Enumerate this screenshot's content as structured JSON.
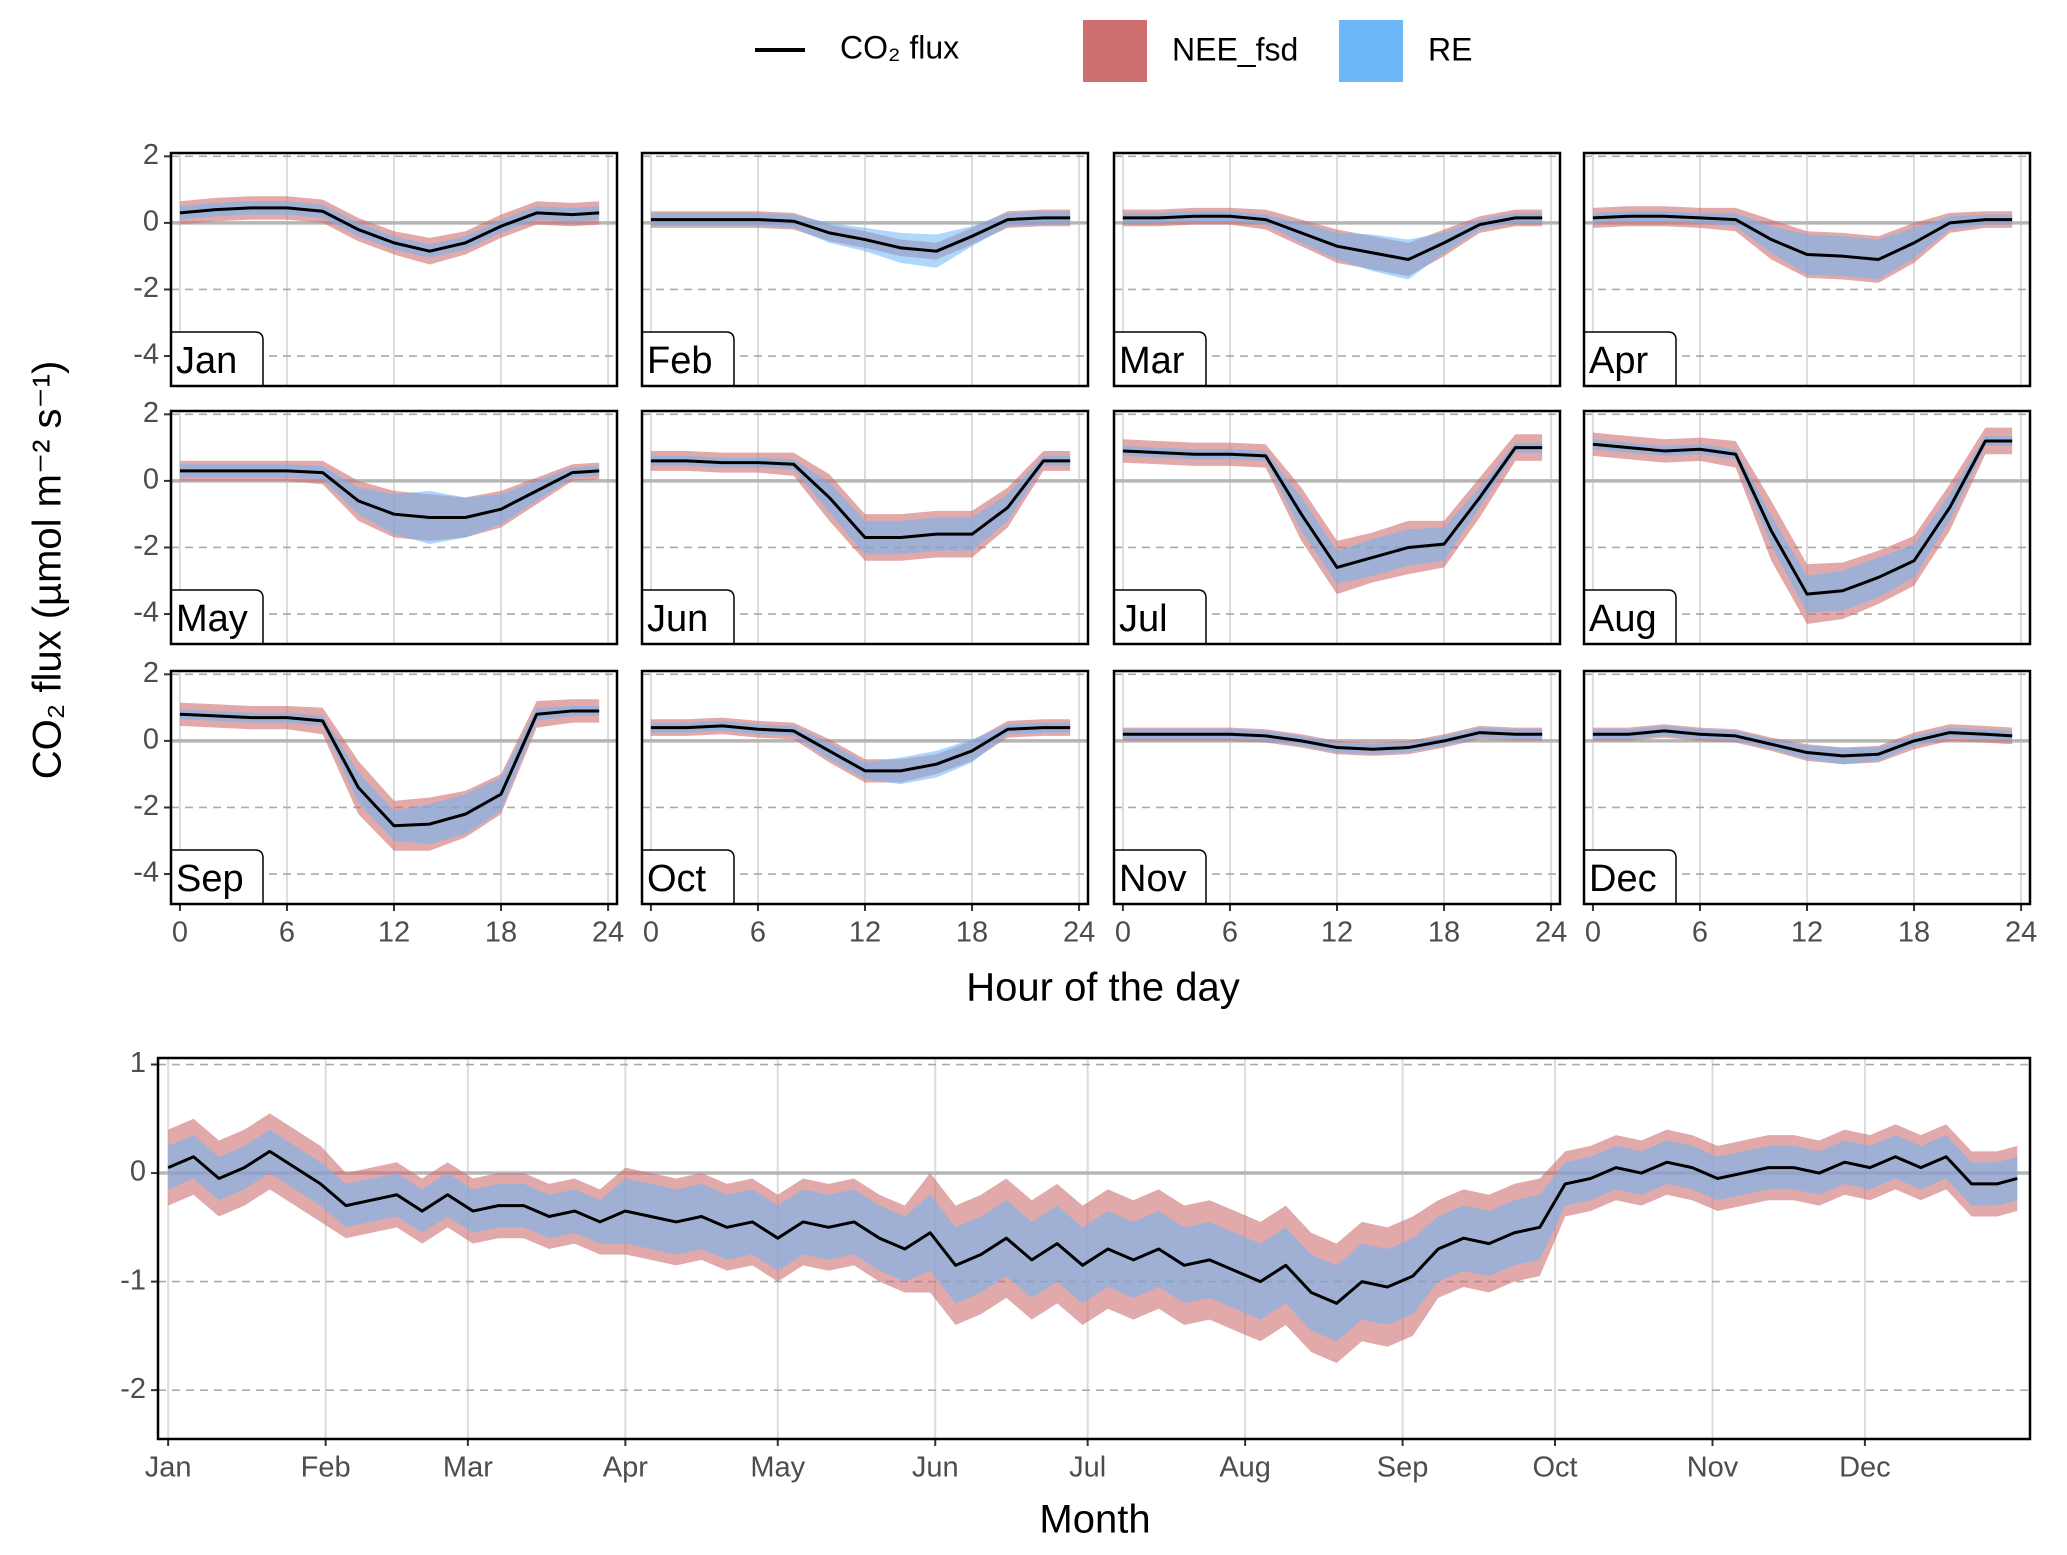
{
  "chart_data": [
    {
      "type": "line",
      "xlabel": "Hour of the day",
      "ylabel": "CO₂ flux (µmol m⁻² s⁻¹)",
      "facets": [
        "Jan",
        "Feb",
        "Mar",
        "Apr",
        "May",
        "Jun",
        "Jul",
        "Aug",
        "Sep",
        "Oct",
        "Nov",
        "Dec"
      ],
      "x": [
        0,
        2,
        4,
        6,
        8,
        10,
        12,
        14,
        16,
        18,
        20,
        22,
        23.5
      ],
      "xlim": [
        -0.5,
        24.5
      ],
      "xticks": [
        0,
        6,
        12,
        18,
        24
      ],
      "ylim": [
        -4.9,
        2.1
      ],
      "yticks": [
        2,
        0,
        -2,
        -4
      ],
      "grid": true,
      "series": [
        {
          "name": "CO₂ flux",
          "color": "#000000",
          "values": [
            [
              0.3,
              0.4,
              0.45,
              0.45,
              0.35,
              -0.2,
              -0.6,
              -0.85,
              -0.6,
              -0.1,
              0.3,
              0.25,
              0.3
            ],
            [
              0.1,
              0.1,
              0.1,
              0.1,
              0.05,
              -0.3,
              -0.5,
              -0.75,
              -0.85,
              -0.4,
              0.1,
              0.15,
              0.15
            ],
            [
              0.15,
              0.15,
              0.2,
              0.2,
              0.1,
              -0.3,
              -0.7,
              -0.9,
              -1.1,
              -0.6,
              -0.05,
              0.15,
              0.15
            ],
            [
              0.15,
              0.2,
              0.2,
              0.15,
              0.1,
              -0.5,
              -0.95,
              -1,
              -1.1,
              -0.6,
              0,
              0.1,
              0.1
            ],
            [
              0.3,
              0.3,
              0.3,
              0.3,
              0.25,
              -0.6,
              -1,
              -1.1,
              -1.1,
              -0.85,
              -0.3,
              0.25,
              0.3
            ],
            [
              0.6,
              0.6,
              0.55,
              0.55,
              0.5,
              -0.5,
              -1.7,
              -1.7,
              -1.6,
              -1.6,
              -0.8,
              0.6,
              0.6
            ],
            [
              0.9,
              0.85,
              0.8,
              0.8,
              0.75,
              -1,
              -2.6,
              -2.3,
              -2,
              -1.9,
              -0.5,
              1,
              1
            ],
            [
              1.1,
              1,
              0.9,
              0.95,
              0.8,
              -1.5,
              -3.4,
              -3.3,
              -2.9,
              -2.4,
              -0.8,
              1.2,
              1.2
            ],
            [
              0.8,
              0.75,
              0.7,
              0.7,
              0.6,
              -1.4,
              -2.55,
              -2.5,
              -2.2,
              -1.6,
              0.8,
              0.9,
              0.9
            ],
            [
              0.4,
              0.4,
              0.45,
              0.35,
              0.3,
              -0.3,
              -0.9,
              -0.9,
              -0.7,
              -0.3,
              0.35,
              0.4,
              0.4
            ],
            [
              0.2,
              0.2,
              0.2,
              0.2,
              0.15,
              0,
              -0.2,
              -0.25,
              -0.2,
              0,
              0.25,
              0.2,
              0.2
            ],
            [
              0.2,
              0.2,
              0.3,
              0.2,
              0.15,
              -0.1,
              -0.35,
              -0.45,
              -0.4,
              0,
              0.25,
              0.2,
              0.15
            ]
          ]
        },
        {
          "name": "NEE_fsd",
          "color": "#cd6f6f",
          "values": [
            [
              0.35,
              0.35,
              0.35,
              0.35,
              0.35,
              0.35,
              0.35,
              0.4,
              0.35,
              0.35,
              0.35,
              0.35,
              0.35
            ],
            [
              0.25,
              0.25,
              0.25,
              0.25,
              0.25,
              0.25,
              0.25,
              0.25,
              0.25,
              0.25,
              0.25,
              0.25,
              0.25
            ],
            [
              0.25,
              0.25,
              0.25,
              0.25,
              0.3,
              0.4,
              0.5,
              0.5,
              0.5,
              0.4,
              0.25,
              0.25,
              0.25
            ],
            [
              0.3,
              0.3,
              0.3,
              0.3,
              0.35,
              0.6,
              0.7,
              0.7,
              0.7,
              0.6,
              0.3,
              0.25,
              0.25
            ],
            [
              0.3,
              0.3,
              0.3,
              0.3,
              0.35,
              0.6,
              0.7,
              0.7,
              0.6,
              0.55,
              0.4,
              0.25,
              0.25
            ],
            [
              0.3,
              0.3,
              0.3,
              0.3,
              0.35,
              0.7,
              0.7,
              0.7,
              0.7,
              0.7,
              0.6,
              0.3,
              0.3
            ],
            [
              0.35,
              0.35,
              0.35,
              0.35,
              0.35,
              0.8,
              0.8,
              0.75,
              0.8,
              0.7,
              0.6,
              0.4,
              0.4
            ],
            [
              0.35,
              0.35,
              0.35,
              0.35,
              0.4,
              0.9,
              0.9,
              0.85,
              0.8,
              0.75,
              0.7,
              0.4,
              0.4
            ],
            [
              0.35,
              0.35,
              0.35,
              0.35,
              0.4,
              0.8,
              0.75,
              0.8,
              0.7,
              0.6,
              0.4,
              0.35,
              0.35
            ],
            [
              0.25,
              0.25,
              0.25,
              0.25,
              0.25,
              0.35,
              0.35,
              0.35,
              0.3,
              0.3,
              0.25,
              0.25,
              0.25
            ],
            [
              0.2,
              0.2,
              0.2,
              0.2,
              0.2,
              0.2,
              0.2,
              0.2,
              0.2,
              0.2,
              0.2,
              0.2,
              0.2
            ],
            [
              0.2,
              0.2,
              0.2,
              0.2,
              0.2,
              0.2,
              0.25,
              0.25,
              0.25,
              0.25,
              0.25,
              0.25,
              0.25
            ]
          ]
        },
        {
          "name": "RE",
          "color": "#6cb7f7",
          "values": [
            [
              0.2,
              0.2,
              0.2,
              0.2,
              0.2,
              0.2,
              0.2,
              0.2,
              0.2,
              0.2,
              0.2,
              0.2,
              0.2
            ],
            [
              0.2,
              0.2,
              0.2,
              0.2,
              0.2,
              0.3,
              0.35,
              0.45,
              0.5,
              0.3,
              0.2,
              0.2,
              0.2
            ],
            [
              0.15,
              0.15,
              0.15,
              0.15,
              0.15,
              0.3,
              0.4,
              0.55,
              0.6,
              0.3,
              0.15,
              0.15,
              0.15
            ],
            [
              0.15,
              0.15,
              0.15,
              0.15,
              0.2,
              0.4,
              0.6,
              0.6,
              0.6,
              0.45,
              0.2,
              0.15,
              0.15
            ],
            [
              0.2,
              0.2,
              0.2,
              0.2,
              0.2,
              0.4,
              0.6,
              0.8,
              0.6,
              0.45,
              0.3,
              0.15,
              0.15
            ],
            [
              0.15,
              0.15,
              0.15,
              0.15,
              0.15,
              0.45,
              0.5,
              0.5,
              0.5,
              0.5,
              0.4,
              0.15,
              0.15
            ],
            [
              0.15,
              0.15,
              0.15,
              0.15,
              0.15,
              0.5,
              0.5,
              0.55,
              0.55,
              0.5,
              0.3,
              0.15,
              0.15
            ],
            [
              0.15,
              0.15,
              0.15,
              0.15,
              0.15,
              0.45,
              0.55,
              0.6,
              0.6,
              0.5,
              0.4,
              0.15,
              0.15
            ],
            [
              0.15,
              0.15,
              0.15,
              0.15,
              0.15,
              0.45,
              0.45,
              0.6,
              0.6,
              0.5,
              0.2,
              0.15,
              0.15
            ],
            [
              0.15,
              0.15,
              0.15,
              0.15,
              0.15,
              0.25,
              0.25,
              0.4,
              0.4,
              0.35,
              0.15,
              0.15,
              0.15
            ],
            [
              0.15,
              0.15,
              0.15,
              0.15,
              0.15,
              0.15,
              0.15,
              0.15,
              0.15,
              0.15,
              0.15,
              0.15,
              0.15
            ],
            [
              0.15,
              0.15,
              0.15,
              0.15,
              0.15,
              0.15,
              0.2,
              0.25,
              0.2,
              0.15,
              0.15,
              0.15,
              0.15
            ]
          ]
        }
      ]
    },
    {
      "type": "line",
      "xlabel": "Month",
      "x": [
        1,
        6,
        11,
        16,
        21,
        26,
        31,
        36,
        41,
        46,
        51,
        56,
        61,
        66,
        71,
        76,
        81,
        86,
        91,
        96,
        101,
        106,
        111,
        116,
        121,
        126,
        131,
        136,
        141,
        146,
        151,
        156,
        161,
        166,
        171,
        176,
        181,
        186,
        191,
        196,
        201,
        206,
        211,
        216,
        221,
        226,
        231,
        236,
        241,
        246,
        251,
        256,
        261,
        266,
        271,
        276,
        281,
        286,
        291,
        296,
        301,
        306,
        311,
        316,
        321,
        326,
        331,
        336,
        341,
        346,
        351,
        356,
        361,
        365
      ],
      "xlim": [
        -1,
        367.5
      ],
      "xticks": [
        {
          "value": 1,
          "label": "Jan"
        },
        {
          "value": 32,
          "label": "Feb"
        },
        {
          "value": 60,
          "label": "Mar"
        },
        {
          "value": 91,
          "label": "Apr"
        },
        {
          "value": 121,
          "label": "May"
        },
        {
          "value": 152,
          "label": "Jun"
        },
        {
          "value": 182,
          "label": "Jul"
        },
        {
          "value": 213,
          "label": "Aug"
        },
        {
          "value": 244,
          "label": "Sep"
        },
        {
          "value": 274,
          "label": "Oct"
        },
        {
          "value": 305,
          "label": "Nov"
        },
        {
          "value": 335,
          "label": "Dec"
        }
      ],
      "ylim": [
        -2.45,
        1.06
      ],
      "yticks": [
        1,
        0,
        -1,
        -2
      ],
      "grid": true,
      "series": [
        {
          "color": "#000000",
          "values": [
            0.05,
            0.15,
            -0.05,
            0.05,
            0.2,
            0.05,
            -0.1,
            -0.3,
            -0.25,
            -0.2,
            -0.35,
            -0.2,
            -0.35,
            -0.3,
            -0.3,
            -0.4,
            -0.35,
            -0.45,
            -0.35,
            -0.4,
            -0.45,
            -0.4,
            -0.5,
            -0.45,
            -0.6,
            -0.45,
            -0.5,
            -0.45,
            -0.6,
            -0.7,
            -0.55,
            -0.85,
            -0.75,
            -0.6,
            -0.8,
            -0.65,
            -0.85,
            -0.7,
            -0.8,
            -0.7,
            -0.85,
            -0.8,
            -0.9,
            -1.0,
            -0.85,
            -1.1,
            -1.2,
            -1.0,
            -1.05,
            -0.95,
            -0.7,
            -0.6,
            -0.65,
            -0.55,
            -0.5,
            -0.1,
            -0.05,
            0.05,
            0,
            0.1,
            0.05,
            -0.05,
            0,
            0.05,
            0.05,
            0,
            0.1,
            0.05,
            0.15,
            0.05,
            0.15,
            -0.1,
            -0.1,
            -0.05
          ]
        },
        {
          "color": "#cd6f6f",
          "values": [
            0.35,
            0.35,
            0.35,
            0.35,
            0.35,
            0.35,
            0.35,
            0.3,
            0.3,
            0.3,
            0.3,
            0.3,
            0.3,
            0.3,
            0.3,
            0.3,
            0.3,
            0.3,
            0.4,
            0.4,
            0.4,
            0.4,
            0.4,
            0.4,
            0.4,
            0.4,
            0.4,
            0.4,
            0.4,
            0.4,
            0.55,
            0.55,
            0.55,
            0.55,
            0.55,
            0.55,
            0.55,
            0.55,
            0.55,
            0.55,
            0.55,
            0.55,
            0.55,
            0.55,
            0.55,
            0.55,
            0.55,
            0.55,
            0.55,
            0.55,
            0.45,
            0.45,
            0.45,
            0.45,
            0.45,
            0.3,
            0.3,
            0.3,
            0.3,
            0.3,
            0.3,
            0.3,
            0.3,
            0.3,
            0.3,
            0.3,
            0.3,
            0.3,
            0.3,
            0.3,
            0.3,
            0.3,
            0.3,
            0.3
          ]
        },
        {
          "color": "#6cb7f7",
          "values": [
            0.2,
            0.2,
            0.2,
            0.2,
            0.2,
            0.2,
            0.2,
            0.2,
            0.2,
            0.2,
            0.2,
            0.2,
            0.2,
            0.2,
            0.2,
            0.2,
            0.2,
            0.2,
            0.3,
            0.3,
            0.3,
            0.3,
            0.3,
            0.3,
            0.3,
            0.3,
            0.3,
            0.3,
            0.3,
            0.3,
            0.35,
            0.35,
            0.35,
            0.35,
            0.35,
            0.35,
            0.35,
            0.35,
            0.35,
            0.35,
            0.35,
            0.35,
            0.35,
            0.35,
            0.35,
            0.35,
            0.35,
            0.35,
            0.35,
            0.35,
            0.3,
            0.3,
            0.3,
            0.3,
            0.3,
            0.2,
            0.2,
            0.2,
            0.2,
            0.2,
            0.2,
            0.2,
            0.2,
            0.2,
            0.2,
            0.2,
            0.2,
            0.2,
            0.2,
            0.2,
            0.2,
            0.2,
            0.2,
            0.2
          ]
        }
      ]
    }
  ]
}
